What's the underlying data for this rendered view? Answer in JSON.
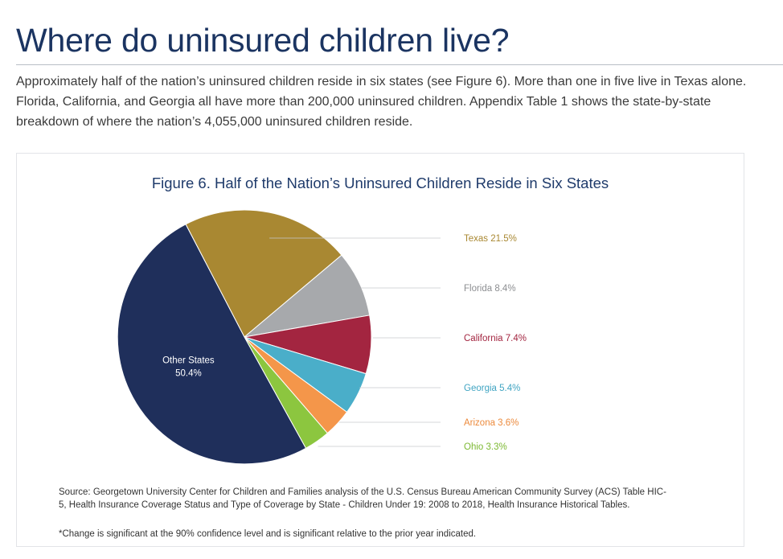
{
  "page": {
    "title": "Where do uninsured children live?",
    "intro": "Approximately half of the nation’s uninsured children reside in six states (see Figure 6). More than one in five live in Texas alone. Florida, California, and Georgia all have more than 200,000 uninsured children. Appendix Table 1 shows the state-by-state breakdown of where the nation’s 4,055,000 uninsured children reside."
  },
  "figure": {
    "source": "Source: Georgetown University Center for Children and Families analysis of the U.S. Census Bureau American Community Survey (ACS) Table HIC-5, Health Insurance Coverage Status and Type of Coverage by State - Children Under 19: 2008 to 2018, Health Insurance Historical Tables.",
    "note": "*Change is significant at the 90% confidence level and is significant relative to the prior year indicated."
  },
  "chart_data": {
    "type": "pie",
    "title": "Figure 6. Half of the Nation’s Uninsured Children Reside in Six States",
    "slices": [
      {
        "label": "Texas",
        "value": 21.5,
        "text": "Texas 21.5%",
        "color": "#a98832",
        "label_color": "#a98832"
      },
      {
        "label": "Florida",
        "value": 8.4,
        "text": "Florida 8.4%",
        "color": "#a7a9ac",
        "label_color": "#8c8e91"
      },
      {
        "label": "California",
        "value": 7.4,
        "text": "California 7.4%",
        "color": "#a32540",
        "label_color": "#a32540"
      },
      {
        "label": "Georgia",
        "value": 5.4,
        "text": "Georgia 5.4%",
        "color": "#4aaec9",
        "label_color": "#3fa4c2"
      },
      {
        "label": "Arizona",
        "value": 3.6,
        "text": "Arizona 3.6%",
        "color": "#f4964a",
        "label_color": "#ec8a3c"
      },
      {
        "label": "Ohio",
        "value": 3.3,
        "text": "Ohio 3.3%",
        "color": "#8cc63f",
        "label_color": "#7db933"
      },
      {
        "label": "Other States",
        "value": 50.4,
        "text": "Other States",
        "value_text": "50.4%",
        "color": "#1f2f5b",
        "label_color": "#ffffff"
      }
    ]
  }
}
